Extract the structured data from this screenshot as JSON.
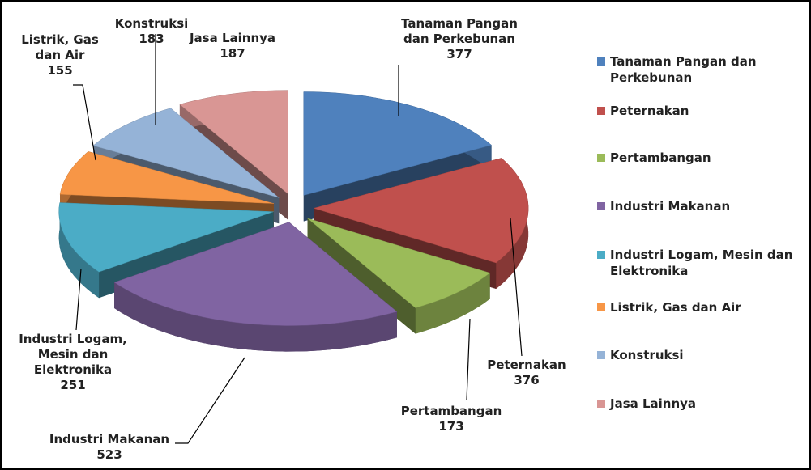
{
  "chart_data": {
    "type": "pie",
    "categories": [
      "Tanaman Pangan dan Perkebunan",
      "Peternakan",
      "Pertambangan",
      "Industri Makanan",
      "Industri Logam, Mesin dan Elektronika",
      "Listrik, Gas dan Air",
      "Konstruksi",
      "Jasa Lainnya"
    ],
    "values": [
      377,
      376,
      173,
      523,
      251,
      155,
      183,
      187
    ],
    "colors": [
      "#4f81bd",
      "#c0504d",
      "#9bbb59",
      "#8064a2",
      "#4bacc6",
      "#f79646",
      "#95b3d7",
      "#d99694"
    ],
    "legend": "right"
  }
}
